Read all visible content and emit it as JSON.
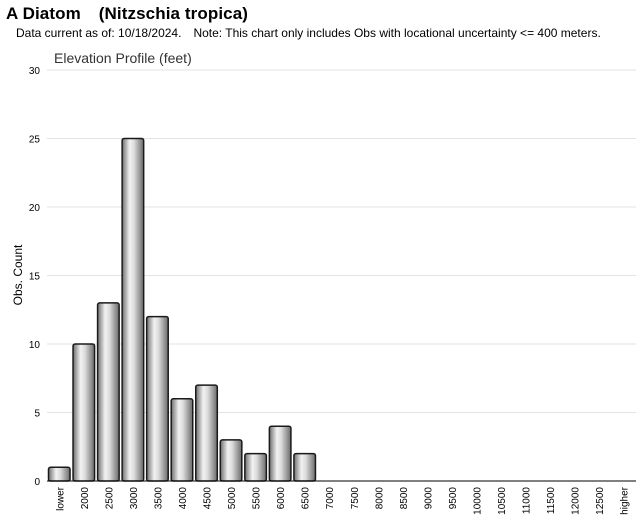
{
  "header": {
    "common_name": "A Diatom",
    "scientific_name": "(Nitzschia tropica)",
    "data_current": "Data current as of: 10/18/2024.",
    "note": "Note: This chart only includes Obs with locational uncertainty <= 400 meters."
  },
  "chart_data": {
    "type": "bar",
    "title": "Elevation Profile (feet)",
    "xlabel": "",
    "ylabel": "Obs. Count",
    "ylim": [
      0,
      30
    ],
    "yticks": [
      0,
      5,
      10,
      15,
      20,
      25,
      30
    ],
    "grid": true,
    "categories": [
      "lower",
      "2000",
      "2500",
      "3000",
      "3500",
      "4000",
      "4500",
      "5000",
      "5500",
      "6000",
      "6500",
      "7000",
      "7500",
      "8000",
      "8500",
      "9000",
      "9500",
      "10000",
      "10500",
      "11000",
      "11500",
      "12000",
      "12500",
      "higher"
    ],
    "values": [
      1,
      10,
      13,
      25,
      12,
      6,
      7,
      3,
      2,
      4,
      2,
      0,
      0,
      0,
      0,
      0,
      0,
      0,
      0,
      0,
      0,
      0,
      0,
      0
    ],
    "bar_color": "#9a9a9a"
  }
}
